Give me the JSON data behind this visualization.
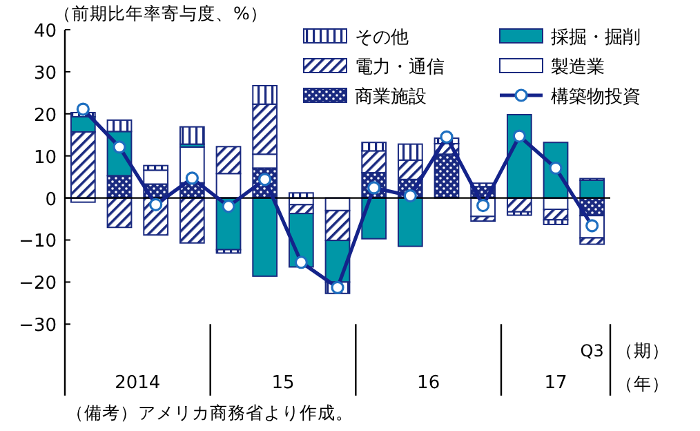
{
  "chart_data": {
    "type": "bar",
    "stacked": true,
    "ylabel": "（前期比年率寄与度、%）",
    "categories": [
      null,
      null,
      null,
      null,
      null,
      null,
      null,
      null,
      null,
      null,
      null,
      null,
      null,
      null,
      "Q3"
    ],
    "ylim": [
      -47,
      40
    ],
    "yticks": [
      -30,
      -20,
      -10,
      0,
      10,
      20,
      30,
      40
    ],
    "legend": "top right",
    "marker": "circle",
    "series": [
      {
        "name": "商業施設",
        "color": "#1a2a80",
        "values": [
          null,
          5.3,
          3.3,
          3.6,
          null,
          7.1,
          null,
          null,
          6.0,
          4.4,
          10.4,
          2.7,
          null,
          null,
          -4.2
        ]
      },
      {
        "name": "製造業",
        "color": "#ffffff",
        "values": [
          -1.0,
          null,
          3.3,
          8.5,
          5.8,
          3.3,
          -1.6,
          -3.0,
          null,
          null,
          null,
          -4.4,
          null,
          -2.7,
          -5.3
        ]
      },
      {
        "name": "電力・通信",
        "color": "#1a2a80",
        "values": [
          15.7,
          -7.0,
          -8.8,
          -10.7,
          6.4,
          11.9,
          -2.1,
          -7.1,
          5.2,
          4.6,
          2.5,
          -1.1,
          -3.3,
          -2.5,
          -1.5
        ]
      },
      {
        "name": "採掘・掘削",
        "color": "#0097a7",
        "values": [
          3.6,
          10.5,
          null,
          0.7,
          -12.3,
          -18.6,
          -12.7,
          -9.9,
          -9.7,
          -11.5,
          null,
          null,
          19.8,
          13.2,
          4.2
        ]
      },
      {
        "name": "その他",
        "color": "#1a2a80",
        "values": [
          1.0,
          2.7,
          1.1,
          4.1,
          -0.8,
          4.4,
          1.2,
          -2.7,
          2.0,
          3.8,
          1.3,
          0.8,
          -0.8,
          -1.1,
          0.4
        ]
      },
      {
        "name": "構築物投資",
        "type": "line",
        "color": "#14238a",
        "values": [
          21.1,
          12.1,
          -1.6,
          4.7,
          -2.0,
          4.4,
          -15.3,
          -21.3,
          2.4,
          0.5,
          14.5,
          -1.8,
          14.7,
          7.1,
          -6.6
        ]
      }
    ],
    "annotations": [
      "2014",
      "15",
      "16",
      "17",
      "（期）",
      "（年）",
      "（備考）アメリカ商務省より作成。"
    ]
  }
}
